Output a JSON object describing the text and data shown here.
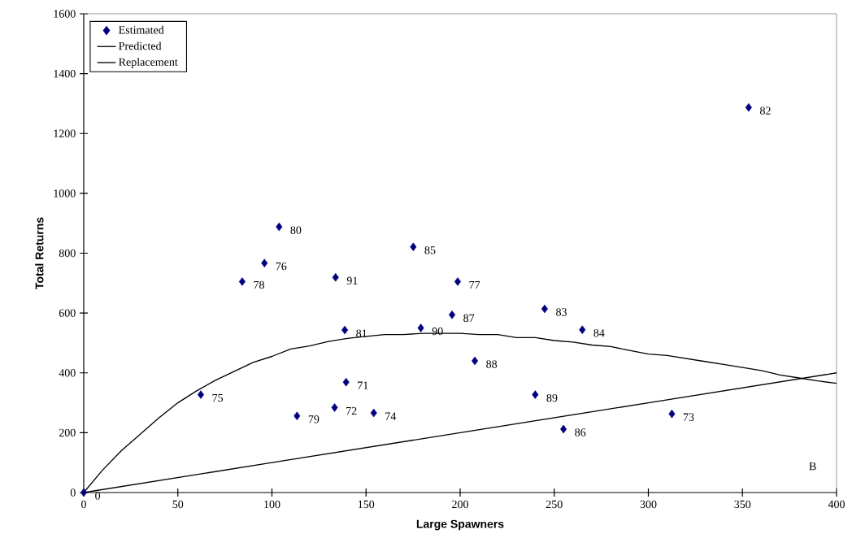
{
  "chart_data": {
    "type": "scatter",
    "xlabel": "Large Spawners",
    "ylabel": "Total Returns",
    "xlim": [
      0,
      400
    ],
    "ylim": [
      0,
      1600
    ],
    "xticks": [
      0,
      50,
      100,
      150,
      200,
      250,
      300,
      350,
      400
    ],
    "yticks": [
      0,
      200,
      400,
      600,
      800,
      1000,
      1200,
      1400,
      1600
    ],
    "grid": false,
    "legend": "top left",
    "series": [
      {
        "name": "Estimated",
        "marker": "diamond",
        "color": "#000080",
        "x": [
          0,
          62.2,
          139.4,
          133.3,
          312.5,
          154.1,
          96,
          198.7,
          84.2,
          113.3,
          103.8,
          138.7,
          353.3,
          244.9,
          264.9,
          175.1,
          254.9,
          195.7,
          207.8,
          239.9,
          179.1,
          133.8
        ],
        "values": [
          0,
          327,
          369,
          284,
          263,
          266,
          767,
          705,
          705,
          256,
          888,
          543,
          1287,
          614,
          544,
          821,
          212,
          594,
          440,
          327,
          550,
          719
        ]
      },
      {
        "name": "Predicted",
        "type": "line",
        "marker": "none",
        "color": "#000000",
        "x": [
          0,
          10,
          20,
          30,
          40,
          50,
          60,
          70,
          80,
          90,
          100,
          110,
          120,
          130,
          140,
          150,
          160,
          170,
          180,
          190,
          200,
          210,
          220,
          230,
          240,
          250,
          260,
          270,
          280,
          290,
          300,
          310,
          320,
          330,
          340,
          350,
          360,
          370,
          380,
          390,
          400
        ],
        "values": [
          0,
          75,
          140,
          195,
          250,
          300,
          340,
          375,
          405,
          435,
          455,
          480,
          490,
          505,
          515,
          522,
          528,
          528,
          532,
          532,
          532,
          528,
          528,
          518,
          518,
          508,
          503,
          493,
          488,
          475,
          463,
          458,
          448,
          438,
          428,
          418,
          408,
          393,
          383,
          373,
          365
        ]
      },
      {
        "name": "Replacement",
        "type": "line",
        "marker": "none",
        "color": "#000000",
        "x": [
          0,
          100,
          200,
          300,
          400
        ],
        "values": [
          0,
          100,
          200,
          300,
          400
        ]
      }
    ],
    "annotations": [
      {
        "text": "0",
        "x": 0,
        "y": 0
      },
      {
        "text": "75",
        "x": 62.2,
        "y": 327
      },
      {
        "text": "71",
        "x": 139.4,
        "y": 369
      },
      {
        "text": "72",
        "x": 133.3,
        "y": 284
      },
      {
        "text": "73",
        "x": 312.5,
        "y": 263
      },
      {
        "text": "74",
        "x": 154.1,
        "y": 266
      },
      {
        "text": "76",
        "x": 96,
        "y": 767
      },
      {
        "text": "77",
        "x": 198.7,
        "y": 705
      },
      {
        "text": "78",
        "x": 84.2,
        "y": 705
      },
      {
        "text": "79",
        "x": 113.3,
        "y": 256
      },
      {
        "text": "80",
        "x": 103.8,
        "y": 888
      },
      {
        "text": "81",
        "x": 138.7,
        "y": 543
      },
      {
        "text": "82",
        "x": 353.3,
        "y": 1287
      },
      {
        "text": "83",
        "x": 244.9,
        "y": 614
      },
      {
        "text": "84",
        "x": 264.9,
        "y": 544
      },
      {
        "text": "85",
        "x": 175.1,
        "y": 821
      },
      {
        "text": "86",
        "x": 254.9,
        "y": 212
      },
      {
        "text": "87",
        "x": 195.7,
        "y": 594
      },
      {
        "text": "88",
        "x": 207.8,
        "y": 440
      },
      {
        "text": "89",
        "x": 239.9,
        "y": 327
      },
      {
        "text": "90",
        "x": 179.1,
        "y": 550
      },
      {
        "text": "91",
        "x": 133.8,
        "y": 719
      },
      "B"
    ]
  }
}
